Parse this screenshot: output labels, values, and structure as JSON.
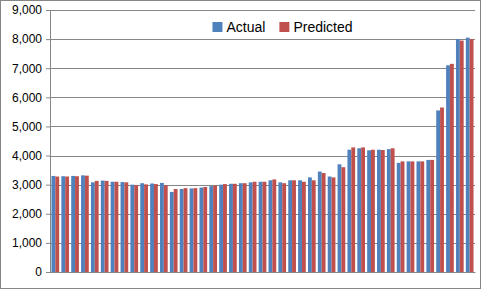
{
  "chart_data": {
    "type": "bar",
    "categories": [
      null,
      null,
      null,
      null,
      null,
      null,
      null,
      null,
      null,
      null,
      null,
      null,
      null,
      null,
      null,
      null,
      null,
      null,
      null,
      null,
      null,
      null,
      null,
      null,
      null,
      null,
      null,
      null,
      null,
      null,
      null,
      null,
      null,
      null,
      null,
      null,
      null,
      null,
      null,
      null,
      null,
      null,
      null
    ],
    "series": [
      {
        "name": "Actual",
        "color": "#4f81bd",
        "values": [
          3300,
          3290,
          3300,
          3320,
          3080,
          3140,
          3100,
          3090,
          3000,
          3050,
          3040,
          3060,
          2750,
          2850,
          2870,
          2900,
          2950,
          3000,
          3030,
          3050,
          3080,
          3100,
          3150,
          3080,
          3150,
          3150,
          3250,
          3450,
          3280,
          3700,
          4200,
          4250,
          4180,
          4200,
          4220,
          3750,
          3800,
          3800,
          3850,
          5550,
          7100,
          8000,
          8050
        ]
      },
      {
        "name": "Predicted",
        "color": "#c0504d",
        "values": [
          3280,
          3280,
          3290,
          3310,
          3130,
          3130,
          3100,
          3080,
          2990,
          3010,
          3020,
          2980,
          2850,
          2880,
          2880,
          2920,
          2970,
          3020,
          3030,
          3050,
          3100,
          3100,
          3180,
          3050,
          3150,
          3100,
          3150,
          3400,
          3250,
          3600,
          4280,
          4280,
          4200,
          4190,
          4250,
          3800,
          3800,
          3800,
          3850,
          5650,
          7150,
          7950,
          8000
        ]
      }
    ],
    "ylim": [
      0,
      9000
    ],
    "yticks": [
      0,
      {
        "value": 1000,
        "label": "1,000"
      },
      {
        "value": 2000,
        "label": "2,000"
      },
      {
        "value": 3000,
        "label": "3,000"
      },
      {
        "value": 4000,
        "label": "4,000"
      },
      {
        "value": 5000,
        "label": "5,000"
      },
      {
        "value": 6000,
        "label": "6,000"
      },
      {
        "value": 7000,
        "label": "7,000"
      },
      {
        "value": 8000,
        "label": "8,000"
      },
      {
        "value": 9000,
        "label": "9,000"
      }
    ],
    "grid": true,
    "legend": "top",
    "tick_labels": "y"
  }
}
